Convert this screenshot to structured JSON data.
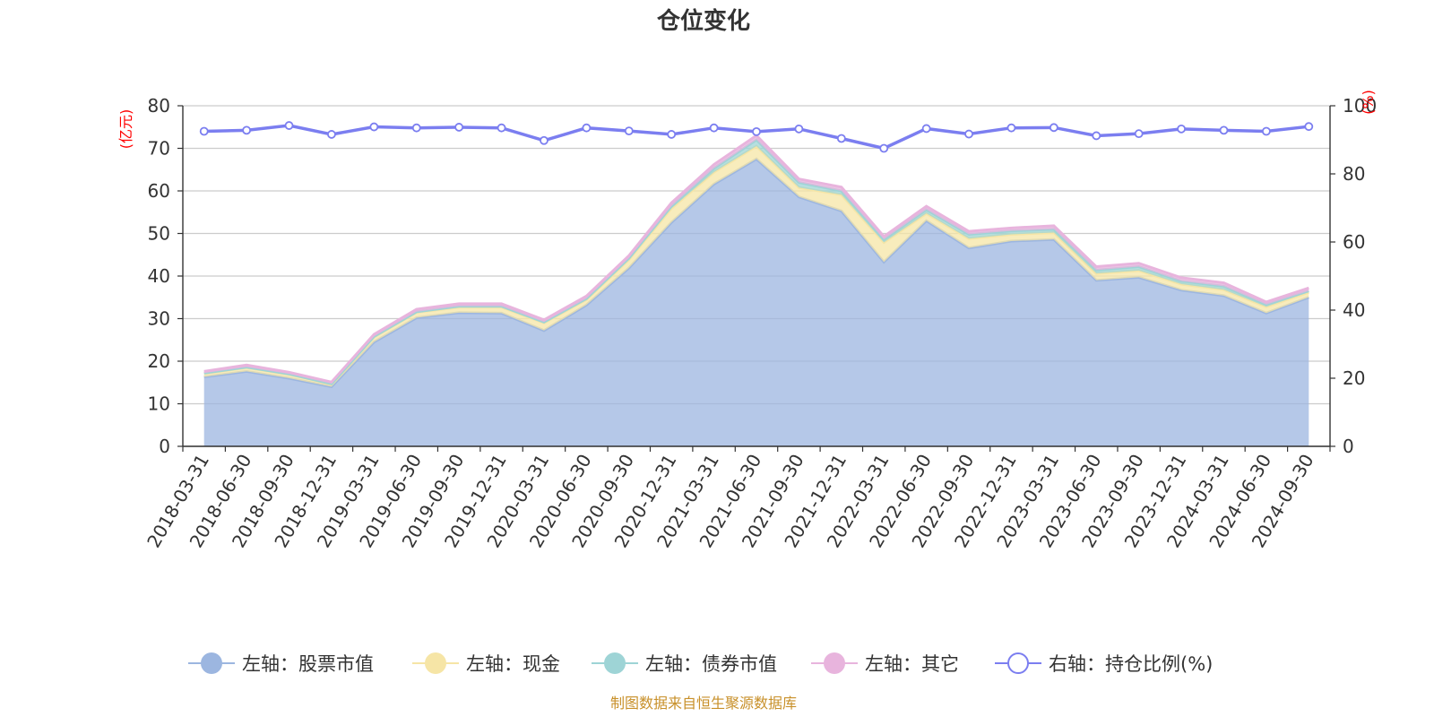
{
  "title": "仓位变化",
  "footer": "制图数据来自恒生聚源数据库",
  "left_axis_unit": "(亿元)",
  "right_axis_unit": "(%)",
  "colors": {
    "stock": "#9cb6e0",
    "cash": "#f6e5a6",
    "bond": "#9ed4d6",
    "other": "#e8b4dd",
    "ratio": "#7b7ef0",
    "title": "#333333",
    "footer": "#c8902a",
    "unit": "#ff0000",
    "grid": "#cccccc",
    "axis": "#333333"
  },
  "legend": [
    {
      "label": "左轴：股票市值",
      "color": "#9cb6e0",
      "style": "filled"
    },
    {
      "label": "左轴：现金",
      "color": "#f6e5a6",
      "style": "filled"
    },
    {
      "label": "左轴：债券市值",
      "color": "#9ed4d6",
      "style": "filled"
    },
    {
      "label": "左轴：其它",
      "color": "#e8b4dd",
      "style": "filled"
    },
    {
      "label": "右轴：持仓比例(%)",
      "color": "#7b7ef0",
      "style": "hollow"
    }
  ],
  "chart_data": {
    "type": "area",
    "categories": [
      "2018-03-31",
      "2018-06-30",
      "2018-09-30",
      "2018-12-31",
      "2019-03-31",
      "2019-06-30",
      "2019-09-30",
      "2019-12-31",
      "2020-03-31",
      "2020-06-30",
      "2020-09-30",
      "2020-12-31",
      "2021-03-31",
      "2021-06-30",
      "2021-09-30",
      "2021-12-31",
      "2022-03-31",
      "2022-06-30",
      "2022-09-30",
      "2022-12-31",
      "2023-03-31",
      "2023-06-30",
      "2023-09-30",
      "2023-12-31",
      "2024-03-31",
      "2024-06-30",
      "2024-09-30"
    ],
    "left_axis": {
      "min": 0,
      "max": 80,
      "ticks": [
        0,
        10,
        20,
        30,
        40,
        50,
        60,
        70,
        80
      ]
    },
    "right_axis": {
      "min": 0,
      "max": 100,
      "ticks": [
        0,
        20,
        40,
        60,
        80,
        100
      ]
    },
    "stacked": true,
    "grid": true,
    "legend_position": "bottom",
    "series": [
      {
        "name": "左轴：股票市值",
        "axis": "left",
        "values": [
          16.3,
          17.6,
          16.0,
          14.0,
          24.5,
          30.2,
          31.4,
          31.3,
          27.2,
          33.2,
          41.9,
          52.6,
          61.6,
          67.5,
          58.6,
          55.3,
          43.3,
          53.0,
          46.6,
          48.2,
          48.6,
          39.0,
          39.7,
          36.7,
          35.4,
          31.3,
          35.0
        ]
      },
      {
        "name": "左轴：现金",
        "axis": "left",
        "values": [
          0.8,
          0.9,
          0.9,
          0.6,
          1.2,
          1.3,
          1.3,
          1.4,
          1.8,
          1.3,
          2.0,
          3.3,
          2.8,
          3.0,
          2.2,
          3.8,
          4.6,
          1.7,
          2.2,
          1.6,
          1.6,
          1.6,
          1.6,
          1.4,
          1.4,
          1.5,
          1.2
        ]
      },
      {
        "name": "左轴：债券市值",
        "axis": "left",
        "values": [
          0.1,
          0.1,
          0.1,
          0.1,
          0.1,
          0.1,
          0.2,
          0.2,
          0.2,
          0.2,
          0.3,
          0.5,
          0.9,
          1.5,
          1.2,
          0.9,
          0.7,
          0.9,
          1.0,
          0.8,
          0.8,
          0.8,
          0.9,
          0.7,
          0.8,
          0.5,
          0.3
        ]
      },
      {
        "name": "左轴：其它",
        "axis": "left",
        "values": [
          0.4,
          0.5,
          0.4,
          0.4,
          0.5,
          0.6,
          0.6,
          0.6,
          0.5,
          0.6,
          0.6,
          0.8,
          0.9,
          1.0,
          0.8,
          0.9,
          0.7,
          0.8,
          0.7,
          0.7,
          0.8,
          0.8,
          0.8,
          0.8,
          0.8,
          0.6,
          0.7
        ]
      },
      {
        "name": "右轴：持仓比例(%)",
        "axis": "right",
        "values": [
          92.5,
          92.8,
          94.2,
          91.6,
          93.8,
          93.5,
          93.7,
          93.5,
          89.8,
          93.5,
          92.6,
          91.6,
          93.5,
          92.4,
          93.2,
          90.4,
          87.5,
          93.3,
          91.7,
          93.5,
          93.6,
          91.2,
          91.8,
          93.2,
          92.8,
          92.5,
          93.9
        ]
      }
    ]
  }
}
